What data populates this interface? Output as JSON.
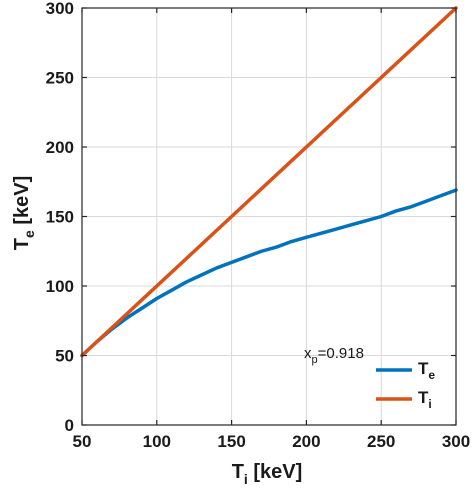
{
  "chart_data": {
    "type": "line",
    "xlabel_main": "T",
    "xlabel_sub": "i",
    "xlabel_unit": " [keV]",
    "ylabel_main": "T",
    "ylabel_sub": "e",
    "ylabel_unit": " [keV]",
    "xlim": [
      50,
      300
    ],
    "ylim": [
      0,
      300
    ],
    "xticks": [
      50,
      100,
      150,
      200,
      250,
      300
    ],
    "yticks": [
      0,
      50,
      100,
      150,
      200,
      250,
      300
    ],
    "grid": true,
    "annotation": {
      "main": "x",
      "sub": "p",
      "rest": "=0.918"
    },
    "legend_position": "bottom-right",
    "series": [
      {
        "name": "T",
        "name_sub": "e",
        "color": "#0072bd",
        "x": [
          50,
          60,
          70,
          80,
          90,
          100,
          110,
          120,
          130,
          140,
          150,
          160,
          170,
          180,
          190,
          200,
          210,
          220,
          230,
          240,
          250,
          260,
          270,
          280,
          290,
          300
        ],
        "y": [
          50,
          60,
          69,
          77,
          84,
          91,
          97,
          103,
          108,
          113,
          117,
          121,
          125,
          128,
          132,
          135,
          138,
          141,
          144,
          147,
          150,
          154,
          157,
          161,
          165,
          169
        ]
      },
      {
        "name": "T",
        "name_sub": "i",
        "color": "#d95319",
        "x": [
          50,
          300
        ],
        "y": [
          50,
          300
        ]
      }
    ]
  }
}
